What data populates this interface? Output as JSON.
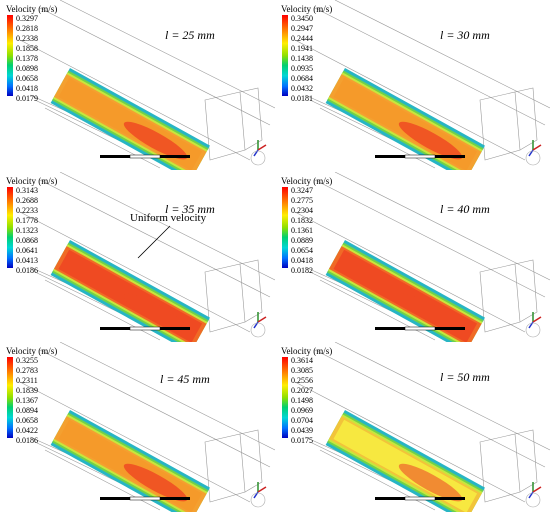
{
  "panels": [
    {
      "title": "Velocity (m/s)",
      "label": "l = 25 mm",
      "ticks": [
        "0.3297",
        "0.2818",
        "0.2338",
        "0.1858",
        "0.1378",
        "0.0898",
        "0.0658",
        "0.0418",
        "0.0179"
      ],
      "style": "orange"
    },
    {
      "title": "Velocity (m/s)",
      "label": "l = 30 mm",
      "ticks": [
        "0.3450",
        "0.2947",
        "0.2444",
        "0.1941",
        "0.1438",
        "0.0935",
        "0.0684",
        "0.0432",
        "0.0181"
      ],
      "style": "orange"
    },
    {
      "title": "Velocity (m/s)",
      "label": "l = 35 mm",
      "ticks": [
        "0.3143",
        "0.2688",
        "0.2233",
        "0.1778",
        "0.1323",
        "0.0868",
        "0.0641",
        "0.0413",
        "0.0186"
      ],
      "style": "red",
      "annotation": "Uniform velocity"
    },
    {
      "title": "Velocity (m/s)",
      "label": "l = 40 mm",
      "ticks": [
        "0.3247",
        "0.2775",
        "0.2304",
        "0.1832",
        "0.1361",
        "0.0889",
        "0.0654",
        "0.0418",
        "0.0182"
      ],
      "style": "red"
    },
    {
      "title": "Velocity (m/s)",
      "label": "l = 45 mm",
      "ticks": [
        "0.3255",
        "0.2783",
        "0.2311",
        "0.1839",
        "0.1367",
        "0.0894",
        "0.0658",
        "0.0422",
        "0.0186"
      ],
      "style": "orange"
    },
    {
      "title": "Velocity (m/s)",
      "label": "l = 50 mm",
      "ticks": [
        "0.3614",
        "0.3085",
        "0.2556",
        "0.2027",
        "0.1498",
        "0.0969",
        "0.0704",
        "0.0439",
        "0.0175"
      ],
      "style": "yellow"
    }
  ],
  "colors": {
    "wall": "#27b5c4",
    "green": "#6fd24a",
    "yellowgreen": "#c8e63c",
    "orange": "#f59a2a",
    "red": "#ef4a22",
    "yellow": "#f7e840"
  }
}
